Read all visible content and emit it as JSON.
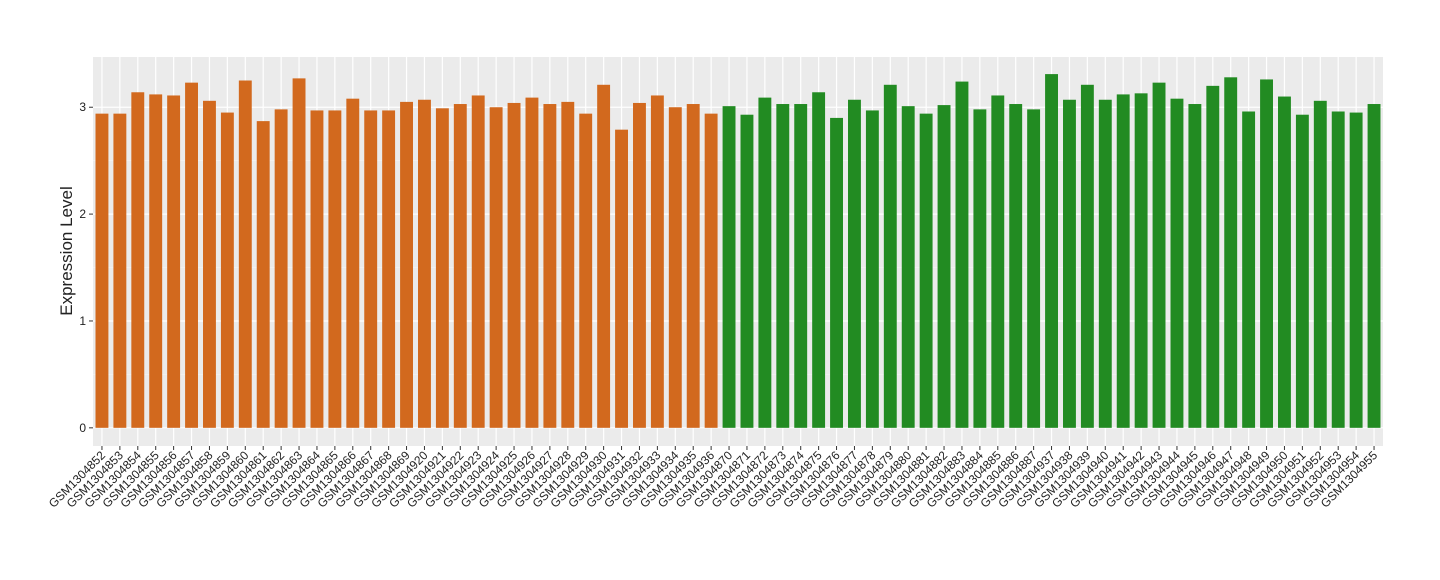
{
  "chart_data": {
    "type": "bar",
    "y_label": "Expression Level",
    "categories": [
      "GSM1304852",
      "GSM1304853",
      "GSM1304854",
      "GSM1304855",
      "GSM1304856",
      "GSM1304857",
      "GSM1304858",
      "GSM1304859",
      "GSM1304860",
      "GSM1304861",
      "GSM1304862",
      "GSM1304863",
      "GSM1304864",
      "GSM1304865",
      "GSM1304866",
      "GSM1304867",
      "GSM1304868",
      "GSM1304869",
      "GSM1304920",
      "GSM1304921",
      "GSM1304922",
      "GSM1304923",
      "GSM1304924",
      "GSM1304925",
      "GSM1304926",
      "GSM1304927",
      "GSM1304928",
      "GSM1304929",
      "GSM1304930",
      "GSM1304931",
      "GSM1304932",
      "GSM1304933",
      "GSM1304934",
      "GSM1304935",
      "GSM1304936",
      "GSM1304870",
      "GSM1304871",
      "GSM1304872",
      "GSM1304873",
      "GSM1304874",
      "GSM1304875",
      "GSM1304876",
      "GSM1304877",
      "GSM1304878",
      "GSM1304879",
      "GSM1304880",
      "GSM1304881",
      "GSM1304882",
      "GSM1304883",
      "GSM1304884",
      "GSM1304885",
      "GSM1304886",
      "GSM1304887",
      "GSM1304937",
      "GSM1304938",
      "GSM1304939",
      "GSM1304940",
      "GSM1304941",
      "GSM1304942",
      "GSM1304943",
      "GSM1304944",
      "GSM1304945",
      "GSM1304946",
      "GSM1304947",
      "GSM1304948",
      "GSM1304949",
      "GSM1304950",
      "GSM1304951",
      "GSM1304952",
      "GSM1304953",
      "GSM1304954",
      "GSM1304955"
    ],
    "values": [
      2.94,
      2.94,
      3.14,
      3.12,
      3.11,
      3.23,
      3.06,
      2.95,
      3.25,
      2.87,
      2.98,
      3.27,
      2.97,
      2.97,
      3.08,
      2.97,
      2.97,
      3.05,
      3.07,
      2.99,
      3.03,
      3.11,
      3.0,
      3.04,
      3.09,
      3.03,
      3.05,
      2.94,
      3.21,
      2.79,
      3.04,
      3.11,
      3.0,
      3.03,
      2.94,
      3.01,
      2.93,
      3.09,
      3.03,
      3.03,
      3.14,
      2.9,
      3.07,
      2.97,
      3.21,
      3.01,
      2.94,
      3.02,
      3.24,
      2.98,
      3.11,
      3.03,
      2.98,
      3.31,
      3.07,
      3.21,
      3.07,
      3.12,
      3.13,
      3.23,
      3.08,
      3.03,
      3.2,
      3.28,
      2.96,
      3.26,
      3.1,
      2.93,
      3.06,
      2.96,
      2.95,
      3.03
    ],
    "colors": [
      "#d2691e",
      "#d2691e",
      "#d2691e",
      "#d2691e",
      "#d2691e",
      "#d2691e",
      "#d2691e",
      "#d2691e",
      "#d2691e",
      "#d2691e",
      "#d2691e",
      "#d2691e",
      "#d2691e",
      "#d2691e",
      "#d2691e",
      "#d2691e",
      "#d2691e",
      "#d2691e",
      "#d2691e",
      "#d2691e",
      "#d2691e",
      "#d2691e",
      "#d2691e",
      "#d2691e",
      "#d2691e",
      "#d2691e",
      "#d2691e",
      "#d2691e",
      "#d2691e",
      "#d2691e",
      "#d2691e",
      "#d2691e",
      "#d2691e",
      "#d2691e",
      "#d2691e",
      "#228b22",
      "#228b22",
      "#228b22",
      "#228b22",
      "#228b22",
      "#228b22",
      "#228b22",
      "#228b22",
      "#228b22",
      "#228b22",
      "#228b22",
      "#228b22",
      "#228b22",
      "#228b22",
      "#228b22",
      "#228b22",
      "#228b22",
      "#228b22",
      "#228b22",
      "#228b22",
      "#228b22",
      "#228b22",
      "#228b22",
      "#228b22",
      "#228b22",
      "#228b22",
      "#228b22",
      "#228b22",
      "#228b22",
      "#228b22",
      "#228b22",
      "#228b22",
      "#228b22",
      "#228b22",
      "#228b22",
      "#228b22",
      "#228b22"
    ],
    "ylim": [
      -0.17,
      3.47
    ],
    "yticks": [
      0,
      1,
      2,
      3
    ],
    "grid": true
  }
}
